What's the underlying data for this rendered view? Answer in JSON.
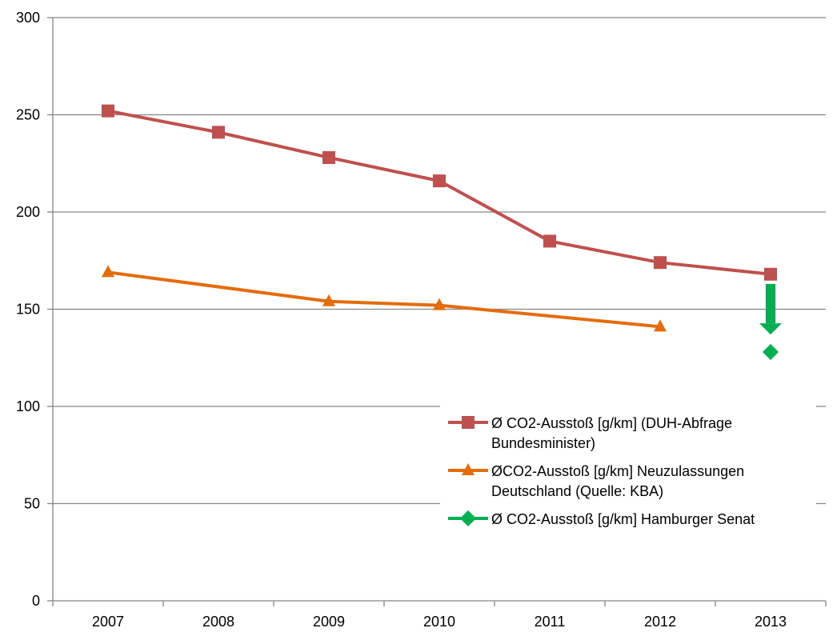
{
  "chart_data": {
    "type": "line",
    "title": "",
    "xlabel": "",
    "ylabel": "",
    "categories": [
      "2007",
      "2008",
      "2009",
      "2010",
      "2011",
      "2012",
      "2013"
    ],
    "ylim": [
      0,
      300
    ],
    "yticks": [
      0,
      50,
      100,
      150,
      200,
      250,
      300
    ],
    "grid": "horizontal",
    "legend_position": "bottom-right",
    "series": [
      {
        "name": "Ø CO2-Ausstoß [g/km] (DUH-Abfrage Bundesminister)",
        "legend_lines": [
          "Ø CO2-Ausstoß [g/km] (DUH-Abfrage",
          "Bundesminister)"
        ],
        "color": "#c0504d",
        "marker": "square",
        "values": [
          252,
          241,
          228,
          216,
          185,
          174,
          168
        ]
      },
      {
        "name": "ØCO2-Ausstoß [g/km] Neuzulassungen Deutschland (Quelle: KBA)",
        "legend_lines": [
          "ØCO2-Ausstoß [g/km] Neuzulassungen",
          "Deutschland (Quelle: KBA)"
        ],
        "color": "#e46c0a",
        "marker": "triangle",
        "values": [
          169,
          null,
          154,
          152,
          null,
          141,
          null
        ]
      },
      {
        "name": "Ø CO2-Ausstoß [g/km] Hamburger Senat",
        "legend_lines": [
          "Ø CO2-Ausstoß [g/km] Hamburger Senat"
        ],
        "color": "#00b050",
        "marker": "diamond",
        "values": [
          null,
          null,
          null,
          null,
          null,
          null,
          128
        ]
      }
    ],
    "annotations": [
      {
        "type": "arrow",
        "direction": "down",
        "category": "2013",
        "from": 163,
        "to": 137,
        "color": "#00b050"
      }
    ]
  }
}
